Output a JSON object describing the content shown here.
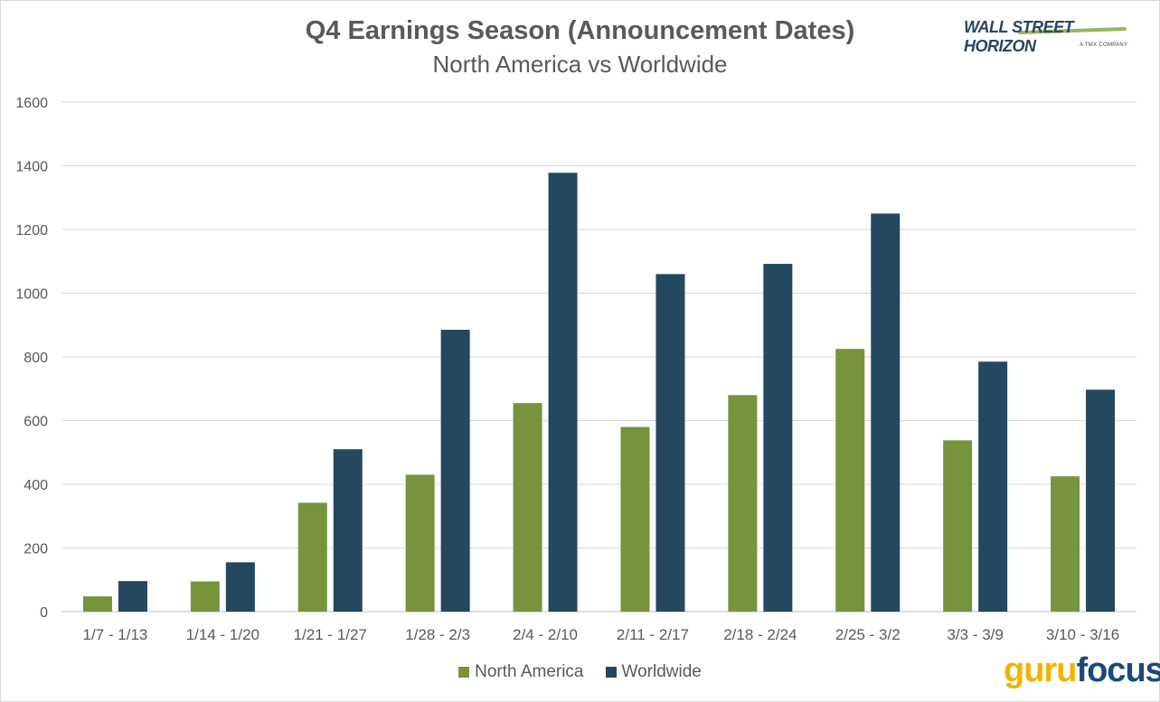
{
  "chart_data": {
    "type": "bar",
    "title": "Q4 Earnings Season (Announcement Dates)",
    "subtitle": "North America vs Worldwide",
    "xlabel": "",
    "ylabel": "",
    "ylim": [
      0,
      1600
    ],
    "yticks": [
      0,
      200,
      400,
      600,
      800,
      1000,
      1200,
      1400,
      1600
    ],
    "grid": true,
    "legend_position": "bottom",
    "categories": [
      "1/7 - 1/13",
      "1/14 - 1/20",
      "1/21 - 1/27",
      "1/28 - 2/3",
      "2/4 - 2/10",
      "2/11 - 2/17",
      "2/18 - 2/24",
      "2/25 - 3/2",
      "3/3 - 3/9",
      "3/10 - 3/16"
    ],
    "series": [
      {
        "name": "North America",
        "color": "#77933c",
        "values": [
          48,
          95,
          342,
          430,
          655,
          580,
          680,
          825,
          538,
          425
        ]
      },
      {
        "name": "Worldwide",
        "color": "#254861",
        "values": [
          96,
          155,
          510,
          885,
          1378,
          1060,
          1092,
          1250,
          785,
          697
        ]
      }
    ]
  },
  "logos": {
    "top_right": {
      "text": "WALL STREET HORIZON",
      "sub": "A TMX COMPANY"
    },
    "bottom_right": {
      "part1": "guru",
      "part2": "focus"
    }
  }
}
